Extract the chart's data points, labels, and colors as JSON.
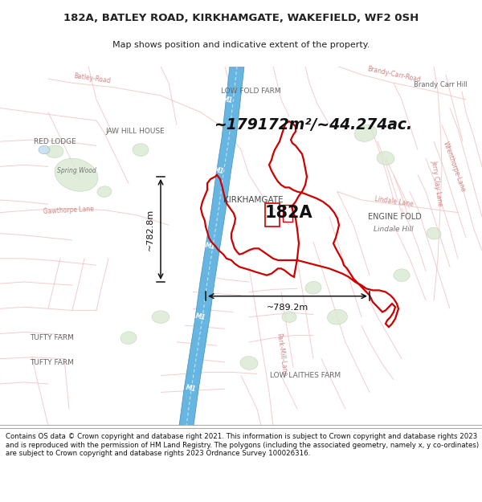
{
  "title_line1": "182A, BATLEY ROAD, KIRKHAMGATE, WAKEFIELD, WF2 0SH",
  "title_line2": "Map shows position and indicative extent of the property.",
  "area_text": "~179172m²/~44.274ac.",
  "label_182A": "182A",
  "label_kirkhamgate": "KIRKHAMGATE",
  "label_engine_fold": "ENGINE FOLD",
  "label_low_fold_farm": "LOW FOLD FARM",
  "label_jaw_hill": "JAW HILL HOUSE",
  "label_red_lodge": "RED LODGE",
  "label_spring_wood": "Spring Wood",
  "label_tufty_farm1": "TUFTY FARM",
  "label_tufty_farm2": "TUFTY FARM",
  "label_low_laithes": "LOW LAITHES FARM",
  "label_brandy_carr": "Brandy Carr Hill",
  "label_lindale_hill": "Lindale Hill",
  "label_wrenthorpe": "Wrenthorpe",
  "label_m1": "M1",
  "dim_height": "~782.8m",
  "dim_width": "~789.2m",
  "footer_text": "Contains OS data © Crown copyright and database right 2021. This information is subject to Crown copyright and database rights 2023 and is reproduced with the permission of HM Land Registry. The polygons (including the associated geometry, namely x, y co-ordinates) are subject to Crown copyright and database rights 2023 Ordnance Survey 100026316.",
  "map_bg": "#ffffff",
  "road_light": "#f0c0c0",
  "motorway_color": "#5ab0e0",
  "motorway_edge": "#3888bb",
  "outline_color": "#cc0000",
  "text_dark": "#222222",
  "text_mid": "#444444",
  "text_light": "#888888",
  "green_fill": "#d8e8d0",
  "green_edge": "#b0c8a8",
  "footer_bg": "#ffffff"
}
